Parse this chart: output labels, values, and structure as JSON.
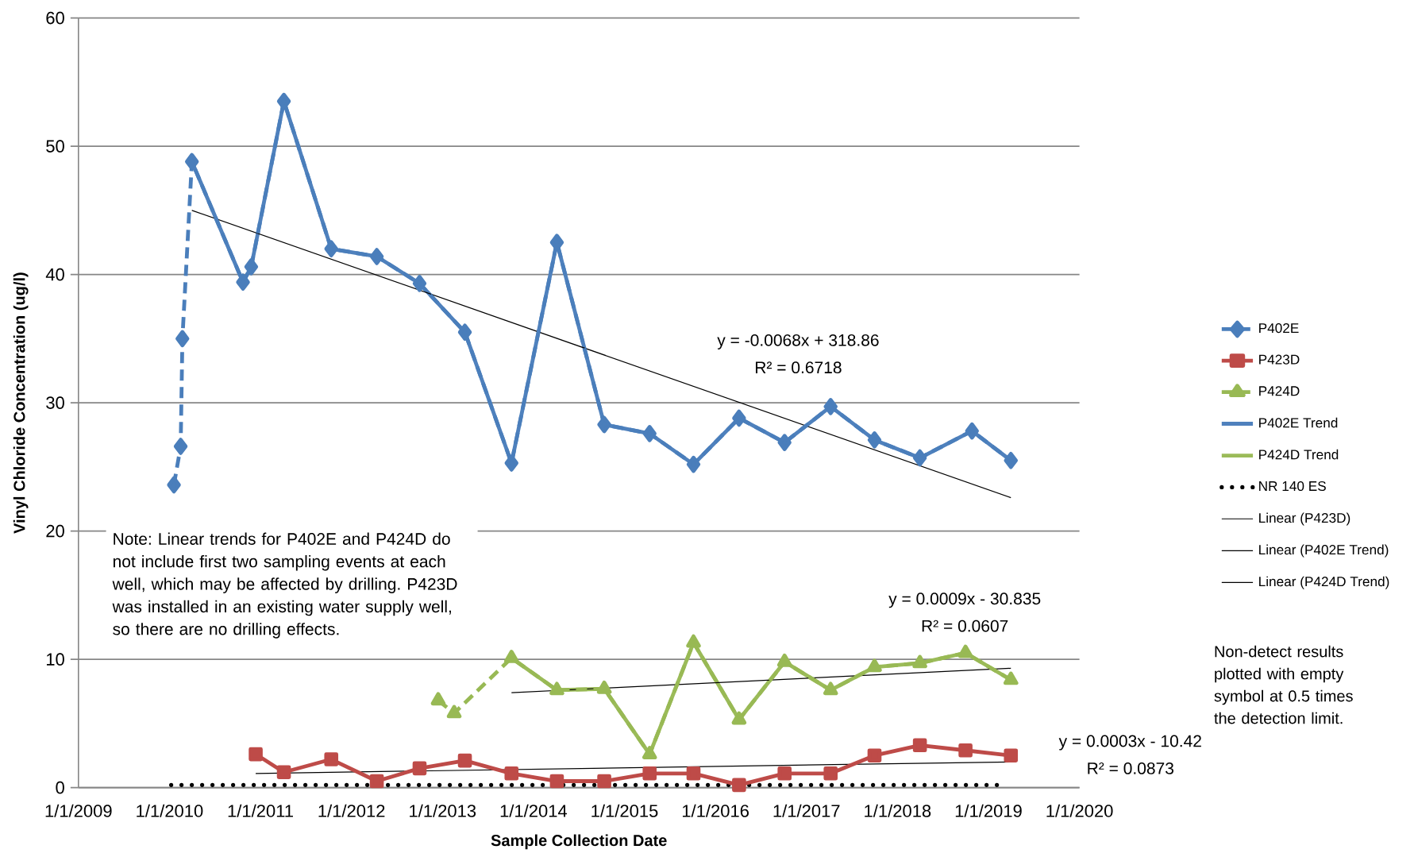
{
  "chart_data": {
    "type": "line",
    "xlabel": "Sample Collection Date",
    "ylabel": "Vinyl Chloride Concentration (ug/l)",
    "xlim": [
      "2009-01-01",
      "2020-01-01"
    ],
    "xticks": [
      {
        "value": "2009-01-01",
        "label": "1/1/2009"
      },
      {
        "value": "2010-01-01",
        "label": "1/1/2010"
      },
      {
        "value": "2011-01-01",
        "label": "1/1/2011"
      },
      {
        "value": "2012-01-01",
        "label": "1/1/2012"
      },
      {
        "value": "2013-01-01",
        "label": "1/1/2013"
      },
      {
        "value": "2014-01-01",
        "label": "1/1/2014"
      },
      {
        "value": "2015-01-01",
        "label": "1/1/2015"
      },
      {
        "value": "2016-01-01",
        "label": "1/1/2016"
      },
      {
        "value": "2017-01-01",
        "label": "1/1/2017"
      },
      {
        "value": "2018-01-01",
        "label": "1/1/2018"
      },
      {
        "value": "2019-01-01",
        "label": "1/1/2019"
      },
      {
        "value": "2020-01-01",
        "label": "1/1/2020"
      }
    ],
    "ylim": [
      0,
      60
    ],
    "yticks": [
      0,
      10,
      20,
      30,
      40,
      50,
      60
    ],
    "grid": "y",
    "legend": "right",
    "series": [
      {
        "name": "P402E",
        "color": "#4a7ebb",
        "marker": "diamond",
        "line_style": "dashed",
        "x": [
          "2010-01-19",
          "2010-02-15",
          "2010-02-22",
          "2010-04-01",
          "2010-10-23",
          "2010-11-25",
          "2011-04-05",
          "2011-10-12",
          "2012-04-12",
          "2012-10-01",
          "2013-04-01",
          "2013-10-05",
          "2014-04-05",
          "2014-10-12",
          "2015-04-12",
          "2015-10-05",
          "2016-04-05",
          "2016-10-05",
          "2017-04-08",
          "2017-10-01",
          "2018-04-01",
          "2018-10-27",
          "2019-04-01"
        ],
        "values": [
          23.6,
          26.6,
          35.0,
          48.8,
          39.4,
          40.6,
          53.5,
          42.0,
          41.4,
          39.3,
          35.5,
          25.3,
          42.5,
          28.3,
          27.6,
          25.2,
          28.8,
          26.9,
          29.7,
          27.1,
          25.7,
          27.8,
          25.5
        ]
      },
      {
        "name": "P423D",
        "color": "#be4b48",
        "marker": "square",
        "line_style": "solid",
        "x": [
          "2010-12-13",
          "2011-04-05",
          "2011-10-12",
          "2012-04-12",
          "2012-10-01",
          "2013-04-01",
          "2013-10-05",
          "2014-04-05",
          "2014-10-12",
          "2015-04-12",
          "2015-10-05",
          "2016-04-05",
          "2016-10-05",
          "2017-04-08",
          "2017-10-01",
          "2018-04-01",
          "2018-10-01",
          "2019-04-01"
        ],
        "values": [
          2.6,
          1.2,
          2.2,
          0.5,
          1.5,
          2.1,
          1.1,
          0.5,
          0.5,
          1.1,
          1.1,
          0.2,
          1.1,
          1.1,
          2.5,
          3.3,
          2.9,
          2.5
        ]
      },
      {
        "name": "P424D",
        "color": "#98b954",
        "marker": "triangle",
        "line_style": "dashed",
        "x": [
          "2012-12-15",
          "2013-02-17",
          "2013-10-05",
          "2014-04-05",
          "2014-10-12",
          "2015-04-12",
          "2015-10-05",
          "2016-04-05",
          "2016-10-05",
          "2017-04-08",
          "2017-10-01",
          "2018-04-01",
          "2018-10-01",
          "2019-04-01"
        ],
        "values": [
          6.8,
          5.8,
          10.1,
          7.6,
          7.7,
          2.6,
          11.3,
          5.3,
          9.8,
          7.6,
          9.4,
          9.7,
          10.5,
          8.4
        ]
      },
      {
        "name": "P402E Trend",
        "color": "#4f81bd",
        "marker": "none",
        "line_style": "solid",
        "x": [
          "2010-04-01",
          "2010-10-23",
          "2010-11-25",
          "2011-04-05",
          "2011-10-12",
          "2012-04-12",
          "2012-10-01",
          "2013-04-01",
          "2013-10-05",
          "2014-04-05",
          "2014-10-12",
          "2015-04-12",
          "2015-10-05",
          "2016-04-05",
          "2016-10-05",
          "2017-04-08",
          "2017-10-01",
          "2018-04-01",
          "2018-10-27",
          "2019-04-01"
        ],
        "values": [
          48.8,
          39.4,
          40.6,
          53.5,
          42.0,
          41.4,
          39.3,
          35.5,
          25.3,
          42.5,
          28.3,
          27.6,
          25.2,
          28.8,
          26.9,
          29.7,
          27.1,
          25.7,
          27.8,
          25.5
        ]
      },
      {
        "name": "P424D Trend",
        "color": "#9bbb59",
        "marker": "none",
        "line_style": "solid",
        "x": [
          "2013-10-05",
          "2014-04-05",
          "2014-10-12",
          "2015-04-12",
          "2015-10-05",
          "2016-04-05",
          "2016-10-05",
          "2017-04-08",
          "2017-10-01",
          "2018-04-01",
          "2018-10-01",
          "2019-04-01"
        ],
        "values": [
          10.1,
          7.6,
          7.7,
          2.6,
          11.3,
          5.3,
          9.8,
          7.6,
          9.4,
          9.7,
          10.5,
          8.4
        ]
      },
      {
        "name": "NR 140 ES",
        "color": "#000000",
        "marker": "none",
        "line_style": "dotted",
        "x": [
          "2010-01-08",
          "2019-03-10"
        ],
        "values": [
          0.2,
          0.2
        ]
      },
      {
        "name": "Linear (P423D)",
        "color": "#000000",
        "marker": "none",
        "line_style": "solid",
        "x": [
          "2010-12-13",
          "2019-04-01"
        ],
        "values": [
          1.1,
          2.0
        ]
      },
      {
        "name": "Linear (P402E Trend)",
        "color": "#000000",
        "marker": "none",
        "line_style": "solid",
        "x": [
          "2010-04-01",
          "2019-04-01"
        ],
        "values": [
          45.0,
          22.6
        ]
      },
      {
        "name": "Linear (P424D Trend)",
        "color": "#000000",
        "marker": "none",
        "line_style": "solid",
        "x": [
          "2013-10-05",
          "2019-04-01"
        ],
        "values": [
          7.4,
          9.3
        ]
      }
    ],
    "annotations": [
      "y = -0.0068x + 318.86",
      "R² = 0.6718",
      "y = 0.0009x - 30.835",
      "R² = 0.0607",
      "y = 0.0003x - 10.42",
      "R² = 0.0873",
      "Note: Linear trends for P402E and P424D do not include first two sampling events at each well, which may be affected by drilling. P423D was installed in an existing water supply well, so there are no drilling effects.",
      "Non-detect results plotted with empty symbol at 0.5 times the detection limit."
    ]
  }
}
